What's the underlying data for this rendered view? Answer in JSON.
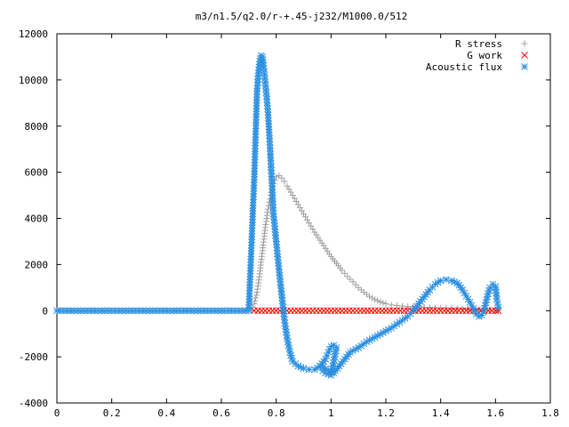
{
  "chart_data": {
    "type": "scatter",
    "title": "m3/n1.5/q2.0/r-+.45-j232/M1000.0/512",
    "xlabel": "",
    "ylabel": "",
    "xlim": [
      0,
      1.8
    ],
    "ylim": [
      -4000,
      12000
    ],
    "x_ticks": [
      "0",
      "0.2",
      "0.4",
      "0.6",
      "0.8",
      "1",
      "1.2",
      "1.4",
      "1.6",
      "1.8"
    ],
    "y_ticks": [
      "-4000",
      "-2000",
      "0",
      "2000",
      "4000",
      "6000",
      "8000",
      "10000",
      "12000"
    ],
    "grid": false,
    "legend_position": "top-right",
    "series": [
      {
        "name": "R stress",
        "marker": "plus",
        "color": "#a0a0a0",
        "points": [
          [
            0.71,
            0
          ],
          [
            0.72,
            300
          ],
          [
            0.73,
            800
          ],
          [
            0.74,
            1600
          ],
          [
            0.75,
            2600
          ],
          [
            0.76,
            3600
          ],
          [
            0.77,
            4400
          ],
          [
            0.78,
            5000
          ],
          [
            0.79,
            5500
          ],
          [
            0.8,
            5800
          ],
          [
            0.81,
            5850
          ],
          [
            0.82,
            5750
          ],
          [
            0.83,
            5600
          ],
          [
            0.84,
            5400
          ],
          [
            0.86,
            5000
          ],
          [
            0.88,
            4600
          ],
          [
            0.9,
            4200
          ],
          [
            0.92,
            3800
          ],
          [
            0.94,
            3400
          ],
          [
            0.96,
            3050
          ],
          [
            0.98,
            2700
          ],
          [
            1.0,
            2350
          ],
          [
            1.02,
            2050
          ],
          [
            1.04,
            1750
          ],
          [
            1.06,
            1480
          ],
          [
            1.08,
            1250
          ],
          [
            1.1,
            1000
          ],
          [
            1.12,
            800
          ],
          [
            1.14,
            620
          ],
          [
            1.16,
            480
          ],
          [
            1.18,
            380
          ],
          [
            1.2,
            300
          ],
          [
            1.22,
            250
          ],
          [
            1.24,
            220
          ],
          [
            1.26,
            200
          ],
          [
            1.28,
            180
          ],
          [
            1.3,
            170
          ],
          [
            1.32,
            160
          ],
          [
            1.34,
            150
          ],
          [
            1.36,
            140
          ],
          [
            1.38,
            130
          ],
          [
            1.4,
            120
          ],
          [
            1.42,
            110
          ],
          [
            1.44,
            100
          ],
          [
            1.46,
            90
          ],
          [
            1.48,
            80
          ],
          [
            1.5,
            70
          ],
          [
            1.52,
            60
          ],
          [
            1.54,
            50
          ],
          [
            1.56,
            40
          ],
          [
            1.58,
            30
          ],
          [
            1.6,
            20
          ],
          [
            1.61,
            10
          ]
        ]
      },
      {
        "name": "G work",
        "marker": "cross",
        "color": "#ff0000",
        "points": [
          [
            0.72,
            0
          ],
          [
            0.76,
            0
          ],
          [
            0.8,
            0
          ],
          [
            0.84,
            0
          ],
          [
            0.88,
            0
          ],
          [
            0.92,
            0
          ],
          [
            0.96,
            0
          ],
          [
            1.0,
            0
          ],
          [
            1.04,
            0
          ],
          [
            1.08,
            0
          ],
          [
            1.12,
            0
          ],
          [
            1.16,
            0
          ],
          [
            1.2,
            0
          ],
          [
            1.24,
            0
          ],
          [
            1.28,
            0
          ],
          [
            1.32,
            0
          ],
          [
            1.36,
            0
          ],
          [
            1.4,
            0
          ],
          [
            1.44,
            0
          ],
          [
            1.48,
            0
          ],
          [
            1.52,
            0
          ],
          [
            1.56,
            0
          ],
          [
            1.6,
            0
          ],
          [
            1.61,
            0
          ]
        ]
      },
      {
        "name": "Acoustic flux",
        "marker": "star",
        "color": "#2a8fe0",
        "points": [
          [
            0.0,
            0
          ],
          [
            0.05,
            0
          ],
          [
            0.1,
            0
          ],
          [
            0.15,
            0
          ],
          [
            0.2,
            0
          ],
          [
            0.25,
            0
          ],
          [
            0.3,
            0
          ],
          [
            0.35,
            0
          ],
          [
            0.4,
            0
          ],
          [
            0.45,
            0
          ],
          [
            0.5,
            0
          ],
          [
            0.55,
            0
          ],
          [
            0.6,
            0
          ],
          [
            0.65,
            0
          ],
          [
            0.7,
            0
          ],
          [
            0.72,
            5800
          ],
          [
            0.73,
            9500
          ],
          [
            0.735,
            10300
          ],
          [
            0.74,
            10800
          ],
          [
            0.745,
            11050
          ],
          [
            0.75,
            11000
          ],
          [
            0.755,
            10500
          ],
          [
            0.76,
            9900
          ],
          [
            0.765,
            9300
          ],
          [
            0.77,
            8600
          ],
          [
            0.775,
            7600
          ],
          [
            0.78,
            6500
          ],
          [
            0.785,
            5400
          ],
          [
            0.79,
            4200
          ],
          [
            0.8,
            3000
          ],
          [
            0.81,
            1800
          ],
          [
            0.82,
            700
          ],
          [
            0.83,
            -400
          ],
          [
            0.84,
            -1200
          ],
          [
            0.85,
            -1800
          ],
          [
            0.86,
            -2200
          ],
          [
            0.88,
            -2400
          ],
          [
            0.9,
            -2500
          ],
          [
            0.92,
            -2550
          ],
          [
            0.94,
            -2550
          ],
          [
            0.96,
            -2400
          ],
          [
            0.98,
            -2100
          ],
          [
            0.99,
            -1800
          ],
          [
            1.0,
            -1550
          ],
          [
            1.01,
            -1500
          ],
          [
            1.02,
            -1600
          ],
          [
            1.0,
            -2800
          ],
          [
            0.99,
            -2750
          ],
          [
            0.98,
            -2700
          ],
          [
            0.97,
            -2600
          ],
          [
            0.96,
            -2400
          ],
          [
            1.01,
            -2700
          ],
          [
            1.03,
            -2400
          ],
          [
            1.05,
            -2100
          ],
          [
            1.07,
            -1800
          ],
          [
            1.1,
            -1600
          ],
          [
            1.13,
            -1350
          ],
          [
            1.16,
            -1150
          ],
          [
            1.19,
            -950
          ],
          [
            1.22,
            -750
          ],
          [
            1.25,
            -500
          ],
          [
            1.28,
            -250
          ],
          [
            1.3,
            0
          ],
          [
            1.32,
            300
          ],
          [
            1.34,
            600
          ],
          [
            1.36,
            900
          ],
          [
            1.38,
            1150
          ],
          [
            1.4,
            1300
          ],
          [
            1.42,
            1350
          ],
          [
            1.44,
            1300
          ],
          [
            1.46,
            1200
          ],
          [
            1.48,
            900
          ],
          [
            1.5,
            500
          ],
          [
            1.52,
            100
          ],
          [
            1.53,
            -150
          ],
          [
            1.54,
            -250
          ],
          [
            1.55,
            -200
          ],
          [
            1.56,
            100
          ],
          [
            1.57,
            600
          ],
          [
            1.58,
            1000
          ],
          [
            1.59,
            1150
          ],
          [
            1.6,
            1050
          ],
          [
            1.605,
            500
          ],
          [
            1.61,
            150
          ]
        ]
      }
    ]
  }
}
